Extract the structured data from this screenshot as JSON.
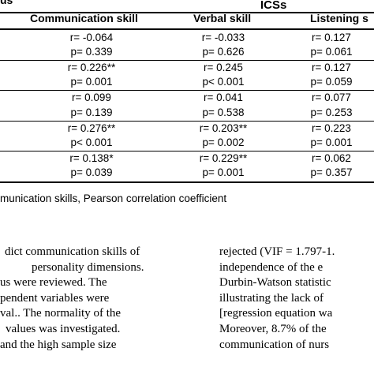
{
  "table": {
    "header_fragment": "us",
    "group_header": "ICSs",
    "columns": [
      "Communication skill",
      "Verbal skill",
      "Listening s"
    ],
    "rows": [
      {
        "comm": [
          "r= -0.064",
          "p= 0.339"
        ],
        "verbal": [
          "r= -0.033",
          "p= 0.626"
        ],
        "listen": [
          "r= 0.127",
          "p= 0.061"
        ]
      },
      {
        "comm": [
          "r= 0.226**",
          "p= 0.001"
        ],
        "verbal": [
          "r= 0.245",
          "p< 0.001"
        ],
        "listen": [
          "r= 0.127",
          "p= 0.059"
        ]
      },
      {
        "comm": [
          "r= 0.099",
          "p= 0.139"
        ],
        "verbal": [
          "r= 0.041",
          "p= 0.538"
        ],
        "listen": [
          "r= 0.077",
          "p= 0.253"
        ]
      },
      {
        "comm": [
          "r= 0.276**",
          "p< 0.001"
        ],
        "verbal": [
          "r= 0.203**",
          "p= 0.002"
        ],
        "listen": [
          "r= 0.223",
          "p= 0.001"
        ]
      },
      {
        "comm": [
          "r= 0.138*",
          "p= 0.039"
        ],
        "verbal": [
          "r= 0.229**",
          "p= 0.001"
        ],
        "listen": [
          "r= 0.062",
          "p= 0.357"
        ]
      }
    ]
  },
  "footnote": "munication skills, Pearson correlation coefficient",
  "left_column": [
    "dict communication skills of",
    "personality  dimensions.",
    "us   were   reviewed.   The",
    "pendent     variables     were",
    "val..  The  normality  of  the",
    "values  was  investigated.",
    "and  the  high  sample  size"
  ],
  "right_column": [
    "rejected (VIF = 1.797-1.",
    "independence of the e",
    "Durbin-Watson statistic",
    "illustrating the lack of",
    "[regression equation wa",
    "Moreover, 8.7% of the",
    "communication of nurs"
  ]
}
